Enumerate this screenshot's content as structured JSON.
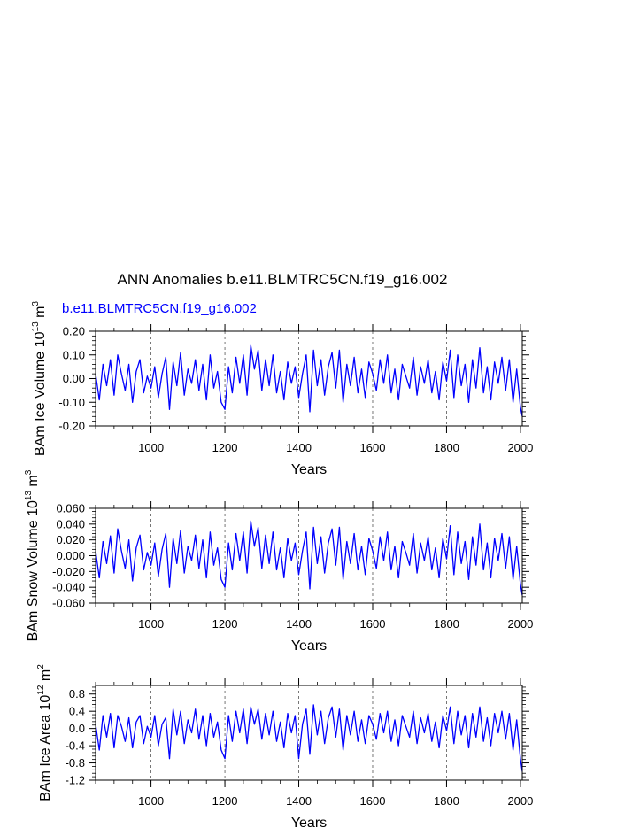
{
  "title": "ANN Anomalies b.e11.BLMTRC5CN.f19_g16.002",
  "colors": {
    "series": "#0000ff",
    "axis": "#000000",
    "grid": "#555555"
  },
  "chart_data": [
    {
      "type": "line",
      "series_label": "b.e11.BLMTRC5CN.f19_g16.002",
      "ylabel": {
        "text": "BAm Ice Volume 10",
        "sup": "13",
        "unit": " m",
        "unit_sup": "3"
      },
      "xlabel": "Years",
      "xlim": [
        850,
        2005
      ],
      "ylim": [
        -0.2,
        0.2
      ],
      "xticks": [
        1000,
        1200,
        1400,
        1600,
        1800,
        2000
      ],
      "yticks": [
        -0.2,
        -0.1,
        0.0,
        0.1,
        0.2
      ],
      "ytick_labels": [
        "-0.20",
        "-0.10",
        "0.00",
        "0.10",
        "0.20"
      ],
      "gridlines_x": [
        1000,
        1200,
        1400,
        1600,
        1800
      ],
      "series": [
        {
          "name": "b.e11.BLMTRC5CN.f19_g16.002",
          "x": [
            850,
            860,
            870,
            880,
            890,
            900,
            910,
            920,
            930,
            940,
            950,
            960,
            970,
            980,
            990,
            1000,
            1010,
            1020,
            1030,
            1040,
            1050,
            1060,
            1070,
            1080,
            1090,
            1100,
            1110,
            1120,
            1130,
            1140,
            1150,
            1160,
            1170,
            1180,
            1190,
            1200,
            1210,
            1220,
            1230,
            1240,
            1250,
            1260,
            1270,
            1280,
            1290,
            1300,
            1310,
            1320,
            1330,
            1340,
            1350,
            1360,
            1370,
            1380,
            1390,
            1400,
            1410,
            1420,
            1430,
            1440,
            1450,
            1460,
            1470,
            1480,
            1490,
            1500,
            1510,
            1520,
            1530,
            1540,
            1550,
            1560,
            1570,
            1580,
            1590,
            1600,
            1610,
            1620,
            1630,
            1640,
            1650,
            1660,
            1670,
            1680,
            1690,
            1700,
            1710,
            1720,
            1730,
            1740,
            1750,
            1760,
            1770,
            1780,
            1790,
            1800,
            1810,
            1820,
            1830,
            1840,
            1850,
            1860,
            1870,
            1880,
            1890,
            1900,
            1910,
            1920,
            1930,
            1940,
            1950,
            1960,
            1970,
            1980,
            1990,
            2000,
            2005
          ],
          "values": [
            0.02,
            -0.09,
            0.06,
            -0.03,
            0.08,
            -0.07,
            0.1,
            0.02,
            -0.05,
            0.06,
            -0.1,
            0.03,
            0.08,
            -0.06,
            0.01,
            -0.04,
            0.05,
            -0.08,
            0.02,
            0.09,
            -0.13,
            0.07,
            -0.03,
            0.11,
            -0.07,
            0.04,
            -0.02,
            0.08,
            -0.05,
            0.06,
            -0.09,
            0.1,
            -0.04,
            0.03,
            -0.1,
            -0.13,
            0.05,
            -0.06,
            0.09,
            -0.02,
            0.1,
            -0.07,
            0.14,
            0.04,
            0.12,
            -0.05,
            0.08,
            -0.03,
            0.1,
            -0.06,
            0.03,
            -0.09,
            0.07,
            -0.02,
            0.05,
            -0.08,
            0.02,
            0.1,
            -0.14,
            0.12,
            -0.03,
            0.08,
            -0.07,
            0.05,
            0.11,
            -0.04,
            0.12,
            -0.1,
            0.06,
            -0.03,
            0.09,
            -0.06,
            0.04,
            -0.08,
            0.07,
            0.02,
            -0.05,
            0.08,
            -0.02,
            0.1,
            -0.06,
            0.04,
            -0.09,
            0.06,
            0.01,
            -0.04,
            0.09,
            -0.07,
            0.05,
            -0.02,
            0.08,
            -0.06,
            0.03,
            -0.09,
            0.07,
            -0.01,
            0.12,
            -0.08,
            0.1,
            -0.03,
            0.06,
            -0.1,
            0.08,
            -0.04,
            0.13,
            -0.06,
            0.05,
            -0.09,
            0.07,
            -0.02,
            0.09,
            -0.05,
            0.08,
            -0.1,
            0.04,
            -0.12,
            -0.16
          ]
        }
      ]
    },
    {
      "type": "line",
      "ylabel": {
        "text": "BAm Snow Volume 10",
        "sup": "13",
        "unit": " m",
        "unit_sup": "3"
      },
      "xlabel": "Years",
      "xlim": [
        850,
        2005
      ],
      "ylim": [
        -0.06,
        0.06
      ],
      "xticks": [
        1000,
        1200,
        1400,
        1600,
        1800,
        2000
      ],
      "yticks": [
        -0.06,
        -0.04,
        -0.02,
        0.0,
        0.02,
        0.04,
        0.06
      ],
      "ytick_labels": [
        "-0.060",
        "-0.040",
        "-0.020",
        "0.000",
        "0.020",
        "0.040",
        "0.060"
      ],
      "gridlines_x": [
        1000,
        1200,
        1400,
        1600,
        1800
      ],
      "series": [
        {
          "x": [
            850,
            860,
            870,
            880,
            890,
            900,
            910,
            920,
            930,
            940,
            950,
            960,
            970,
            980,
            990,
            1000,
            1010,
            1020,
            1030,
            1040,
            1050,
            1060,
            1070,
            1080,
            1090,
            1100,
            1110,
            1120,
            1130,
            1140,
            1150,
            1160,
            1170,
            1180,
            1190,
            1200,
            1210,
            1220,
            1230,
            1240,
            1250,
            1260,
            1270,
            1280,
            1290,
            1300,
            1310,
            1320,
            1330,
            1340,
            1350,
            1360,
            1370,
            1380,
            1390,
            1400,
            1410,
            1420,
            1430,
            1440,
            1450,
            1460,
            1470,
            1480,
            1490,
            1500,
            1510,
            1520,
            1530,
            1540,
            1550,
            1560,
            1570,
            1580,
            1590,
            1600,
            1610,
            1620,
            1630,
            1640,
            1650,
            1660,
            1670,
            1680,
            1690,
            1700,
            1710,
            1720,
            1730,
            1740,
            1750,
            1760,
            1770,
            1780,
            1790,
            1800,
            1810,
            1820,
            1830,
            1840,
            1850,
            1860,
            1870,
            1880,
            1890,
            1900,
            1910,
            1920,
            1930,
            1940,
            1950,
            1960,
            1970,
            1980,
            1990,
            2000,
            2005
          ],
          "values": [
            0.006,
            -0.028,
            0.018,
            -0.01,
            0.025,
            -0.022,
            0.034,
            0.006,
            -0.016,
            0.02,
            -0.032,
            0.01,
            0.026,
            -0.018,
            0.004,
            -0.012,
            0.016,
            -0.026,
            0.008,
            0.028,
            -0.04,
            0.022,
            -0.01,
            0.032,
            -0.022,
            0.012,
            -0.006,
            0.026,
            -0.016,
            0.02,
            -0.028,
            0.03,
            -0.012,
            0.01,
            -0.03,
            -0.04,
            0.016,
            -0.018,
            0.028,
            -0.006,
            0.03,
            -0.022,
            0.044,
            0.012,
            0.036,
            -0.016,
            0.026,
            -0.01,
            0.03,
            -0.018,
            0.01,
            -0.028,
            0.022,
            -0.006,
            0.016,
            -0.024,
            0.006,
            0.03,
            -0.042,
            0.036,
            -0.01,
            0.024,
            -0.022,
            0.016,
            0.034,
            -0.012,
            0.036,
            -0.03,
            0.018,
            -0.01,
            0.028,
            -0.018,
            0.012,
            -0.024,
            0.022,
            0.006,
            -0.016,
            0.024,
            -0.006,
            0.03,
            -0.018,
            0.012,
            -0.028,
            0.018,
            0.004,
            -0.012,
            0.028,
            -0.022,
            0.016,
            -0.006,
            0.024,
            -0.018,
            0.01,
            -0.028,
            0.022,
            -0.004,
            0.038,
            -0.024,
            0.03,
            -0.01,
            0.018,
            -0.03,
            0.024,
            -0.012,
            0.04,
            -0.018,
            0.016,
            -0.028,
            0.022,
            -0.006,
            0.028,
            -0.016,
            0.024,
            -0.03,
            0.012,
            -0.036,
            -0.05
          ]
        }
      ]
    },
    {
      "type": "line",
      "ylabel": {
        "text": "BAm Ice Area 10",
        "sup": "12",
        "unit": " m",
        "unit_sup": "2"
      },
      "xlabel": "Years",
      "xlim": [
        850,
        2005
      ],
      "ylim": [
        -1.2,
        1.0
      ],
      "xticks": [
        1000,
        1200,
        1400,
        1600,
        1800,
        2000
      ],
      "yticks": [
        -1.2,
        -0.8,
        -0.4,
        0.0,
        0.4,
        0.8
      ],
      "ytick_labels": [
        "-1.2",
        "-0.8",
        "-0.4",
        "0.0",
        "0.4",
        "0.8"
      ],
      "gridlines_x": [
        1000,
        1200,
        1400,
        1600,
        1800
      ],
      "series": [
        {
          "x": [
            850,
            860,
            870,
            880,
            890,
            900,
            910,
            920,
            930,
            940,
            950,
            960,
            970,
            980,
            990,
            1000,
            1010,
            1020,
            1030,
            1040,
            1050,
            1060,
            1070,
            1080,
            1090,
            1100,
            1110,
            1120,
            1130,
            1140,
            1150,
            1160,
            1170,
            1180,
            1190,
            1200,
            1210,
            1220,
            1230,
            1240,
            1250,
            1260,
            1270,
            1280,
            1290,
            1300,
            1310,
            1320,
            1330,
            1340,
            1350,
            1360,
            1370,
            1380,
            1390,
            1400,
            1410,
            1420,
            1430,
            1440,
            1450,
            1460,
            1470,
            1480,
            1490,
            1500,
            1510,
            1520,
            1530,
            1540,
            1550,
            1560,
            1570,
            1580,
            1590,
            1600,
            1610,
            1620,
            1630,
            1640,
            1650,
            1660,
            1670,
            1680,
            1690,
            1700,
            1710,
            1720,
            1730,
            1740,
            1750,
            1760,
            1770,
            1780,
            1790,
            1800,
            1810,
            1820,
            1830,
            1840,
            1850,
            1860,
            1870,
            1880,
            1890,
            1900,
            1910,
            1920,
            1930,
            1940,
            1950,
            1960,
            1970,
            1980,
            1990,
            2000,
            2005
          ],
          "values": [
            0.1,
            -0.5,
            0.3,
            -0.2,
            0.35,
            -0.45,
            0.3,
            0.05,
            -0.3,
            0.25,
            -0.45,
            0.15,
            0.3,
            -0.35,
            0.05,
            -0.2,
            0.3,
            -0.4,
            0.1,
            0.25,
            -0.7,
            0.45,
            -0.15,
            0.4,
            -0.35,
            0.2,
            -0.1,
            0.45,
            -0.25,
            0.3,
            -0.4,
            0.35,
            -0.2,
            0.15,
            -0.5,
            -0.7,
            0.3,
            -0.3,
            0.4,
            -0.1,
            0.45,
            -0.35,
            0.5,
            0.1,
            0.45,
            -0.25,
            0.35,
            -0.15,
            0.4,
            -0.3,
            0.15,
            -0.45,
            0.35,
            -0.1,
            0.3,
            -0.7,
            0.1,
            0.45,
            -0.6,
            0.55,
            -0.15,
            0.4,
            -0.35,
            0.25,
            0.5,
            -0.2,
            0.45,
            -0.5,
            0.3,
            -0.15,
            0.4,
            -0.3,
            0.2,
            -0.35,
            0.3,
            0.1,
            -0.25,
            0.35,
            -0.1,
            0.4,
            -0.3,
            0.2,
            -0.4,
            0.3,
            0.05,
            -0.2,
            0.4,
            -0.35,
            0.25,
            -0.1,
            0.35,
            -0.3,
            0.15,
            -0.45,
            0.3,
            -0.05,
            0.5,
            -0.35,
            0.4,
            -0.15,
            0.3,
            -0.45,
            0.35,
            -0.2,
            0.5,
            -0.3,
            0.25,
            -0.4,
            0.35,
            -0.1,
            0.4,
            -0.25,
            0.35,
            -0.5,
            0.2,
            -0.7,
            -1.0
          ]
        }
      ]
    }
  ]
}
